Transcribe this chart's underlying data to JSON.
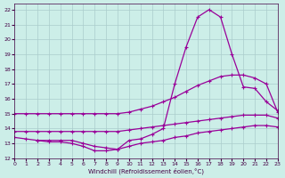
{
  "xlabel": "Windchill (Refroidissement éolien,°C)",
  "background_color": "#cceee8",
  "grid_color": "#aacccc",
  "line_color": "#990099",
  "xlim": [
    0,
    23
  ],
  "ylim": [
    12,
    22.4
  ],
  "xticks": [
    0,
    1,
    2,
    3,
    4,
    5,
    6,
    7,
    8,
    9,
    10,
    11,
    12,
    13,
    14,
    15,
    16,
    17,
    18,
    19,
    20,
    21,
    22,
    23
  ],
  "yticks": [
    12,
    13,
    14,
    15,
    16,
    17,
    18,
    19,
    20,
    21,
    22
  ],
  "series1_x": [
    0,
    1,
    2,
    3,
    4,
    5,
    6,
    7,
    8,
    9,
    10,
    11,
    12,
    13,
    14,
    15,
    16,
    17,
    18,
    19,
    20,
    21,
    22,
    23
  ],
  "series1_y": [
    15.0,
    15.0,
    15.0,
    15.0,
    15.0,
    15.0,
    15.0,
    15.0,
    15.0,
    15.0,
    15.1,
    15.3,
    15.5,
    15.8,
    16.1,
    16.5,
    16.9,
    17.2,
    17.5,
    17.6,
    17.6,
    17.4,
    17.0,
    15.1
  ],
  "series2_x": [
    0,
    1,
    2,
    3,
    4,
    5,
    6,
    7,
    8,
    9,
    10,
    11,
    12,
    13,
    14,
    15,
    16,
    17,
    18,
    19,
    20,
    21,
    22,
    23
  ],
  "series2_y": [
    13.8,
    13.8,
    13.8,
    13.8,
    13.8,
    13.8,
    13.8,
    13.8,
    13.8,
    13.8,
    13.9,
    14.0,
    14.1,
    14.2,
    14.3,
    14.4,
    14.5,
    14.6,
    14.7,
    14.8,
    14.9,
    14.9,
    14.9,
    14.7
  ],
  "series3_x": [
    0,
    1,
    2,
    3,
    4,
    5,
    6,
    7,
    8,
    9,
    10,
    11,
    12,
    13,
    14,
    15,
    16,
    17,
    18,
    19,
    20,
    21,
    22,
    23
  ],
  "series3_y": [
    13.4,
    13.3,
    13.2,
    13.1,
    13.1,
    13.0,
    12.8,
    12.5,
    12.5,
    12.6,
    12.8,
    13.0,
    13.1,
    13.2,
    13.4,
    13.5,
    13.7,
    13.8,
    13.9,
    14.0,
    14.1,
    14.2,
    14.2,
    14.1
  ],
  "series4_x": [
    2,
    3,
    4,
    5,
    6,
    7,
    8,
    9,
    10,
    11,
    12,
    13,
    14,
    15,
    16,
    17,
    18,
    19,
    20,
    21,
    22,
    23
  ],
  "series4_y": [
    13.2,
    13.2,
    13.2,
    13.2,
    13.0,
    12.8,
    12.7,
    12.6,
    13.2,
    13.3,
    13.6,
    14.0,
    17.0,
    19.5,
    21.5,
    22.0,
    21.5,
    19.0,
    16.8,
    16.7,
    15.8,
    15.2
  ]
}
